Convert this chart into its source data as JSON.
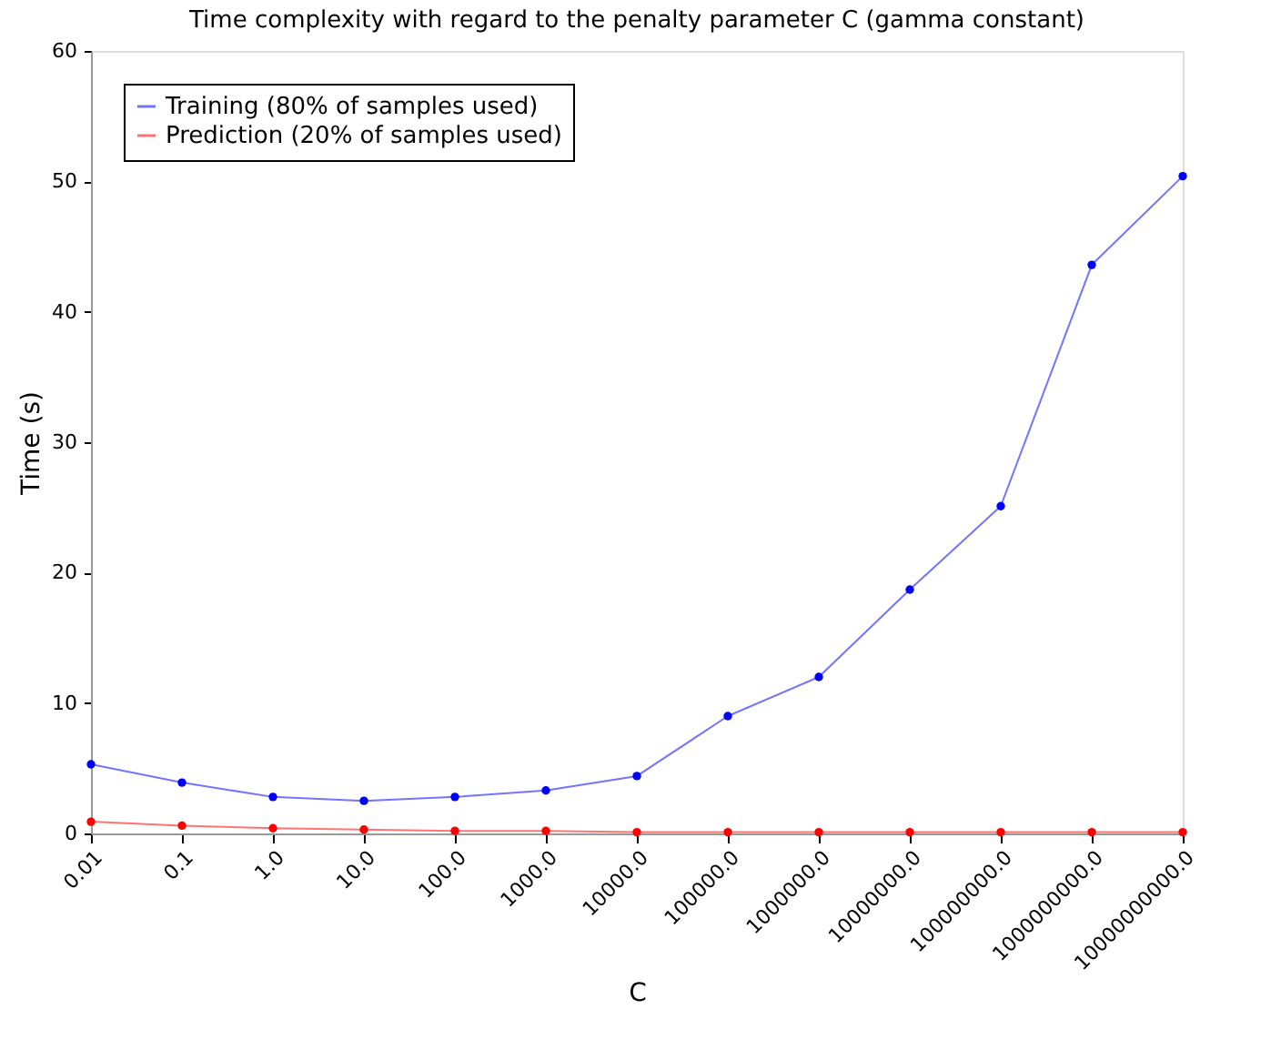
{
  "chart_data": {
    "type": "line",
    "title": "Time complexity with regard to the penalty parameter C (gamma constant)",
    "xlabel": "C",
    "ylabel": "Time (s)",
    "categories": [
      "0.01",
      "0.1",
      "1.0",
      "10.0",
      "100.0",
      "1000.0",
      "10000.0",
      "100000.0",
      "1000000.0",
      "10000000.0",
      "100000000.0",
      "1000000000.0",
      "10000000000.0"
    ],
    "series": [
      {
        "name": "Training (80% of samples used)",
        "color": "#0000ff",
        "values": [
          5.3,
          3.9,
          2.8,
          2.5,
          2.8,
          3.3,
          4.4,
          9.0,
          12.0,
          18.7,
          25.1,
          43.6,
          50.4
        ]
      },
      {
        "name": "Prediction (20% of samples used)",
        "color": "#ff0000",
        "values": [
          0.9,
          0.6,
          0.4,
          0.3,
          0.2,
          0.2,
          0.1,
          0.1,
          0.1,
          0.1,
          0.1,
          0.1,
          0.1
        ]
      }
    ],
    "ylim": [
      0,
      60
    ],
    "yticks": [
      0,
      10,
      20,
      30,
      40,
      50,
      60
    ],
    "grid": false,
    "legend": "top left",
    "marker": "circle",
    "line_style": "solid"
  }
}
